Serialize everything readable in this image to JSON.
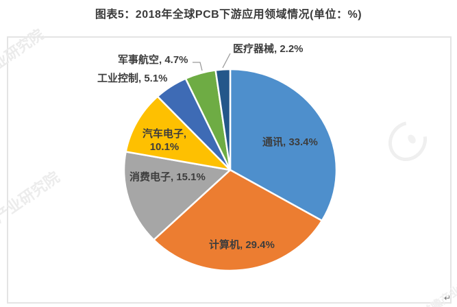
{
  "chart_data": {
    "type": "pie",
    "title": "图表5：2018年全球PCB下游应用领域情况(单位：%)",
    "unit": "%",
    "legend_position": "none",
    "label_format": "name, value%",
    "start_angle_deg": 0,
    "direction": "clockwise",
    "categories": [
      "通讯",
      "计算机",
      "消费电子",
      "汽车电子",
      "工业控制",
      "军事航空",
      "医疗器械"
    ],
    "values": [
      33.4,
      29.4,
      15.1,
      10.1,
      5.1,
      4.7,
      2.2
    ],
    "series": [
      {
        "name": "通讯",
        "value": 33.4,
        "color": "#4E8FCC",
        "label": "通讯, 33.4%",
        "label_placement": "inside"
      },
      {
        "name": "计算机",
        "value": 29.4,
        "color": "#EC7D31",
        "label": "计算机, 29.4%",
        "label_placement": "inside"
      },
      {
        "name": "消费电子",
        "value": 15.1,
        "color": "#A6A6A6",
        "label": "消费电子, 15.1%",
        "label_placement": "inside"
      },
      {
        "name": "汽车电子",
        "value": 10.1,
        "color": "#FEC001",
        "label": "汽车电子, 10.1%",
        "label_placement": "inside"
      },
      {
        "name": "工业控制",
        "value": 5.1,
        "color": "#3E6BB5",
        "label": "工业控制, 5.1%",
        "label_placement": "outside"
      },
      {
        "name": "军事航空",
        "value": 4.7,
        "color": "#6EAC44",
        "label": "军事航空, 4.7%",
        "label_placement": "outside"
      },
      {
        "name": "医疗器械",
        "value": 2.2,
        "color": "#24578A",
        "label": "医疗器械, 2.2%",
        "label_placement": "outside"
      }
    ]
  },
  "watermarks": {
    "items": [
      "产业研究院",
      "前瞻产业研究院",
      "前瞻产业研究院",
      "前瞻产业研究院"
    ],
    "corner_mark": "↵"
  }
}
